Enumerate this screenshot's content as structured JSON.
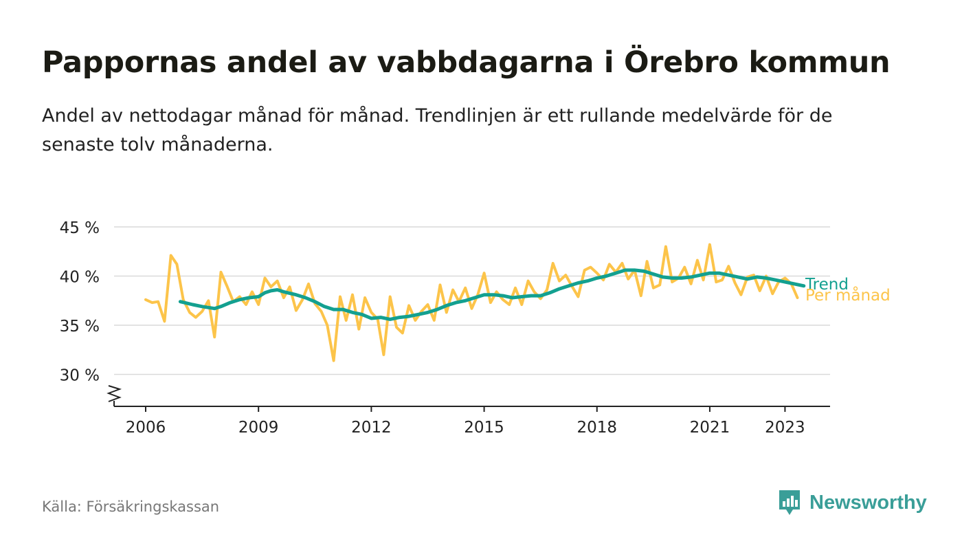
{
  "header": {
    "title": "Pappornas andel av vabbdagarna i Örebro kommun",
    "subtitle": "Andel av nettodagar månad för månad. Trendlinjen är ett rullande medelvärde för de senaste tolv månaderna."
  },
  "footer": {
    "source": "Källa: Försäkringskassan",
    "brand": "Newsworthy"
  },
  "colors": {
    "monthly": "#fcc44a",
    "trend": "#13a090",
    "brand": "#3a9e98",
    "grid": "#d9d9d9",
    "axis": "#222222"
  },
  "chart_data": {
    "type": "line",
    "title": "Pappornas andel av vabbdagarna i Örebro kommun",
    "subtitle": "Andel av nettodagar månad för månad. Trendlinjen är ett rullande medelvärde för de senaste tolv månaderna.",
    "xlabel": "",
    "ylabel": "",
    "x_range": [
      2005.1,
      2024.2
    ],
    "ylim": [
      27,
      45
    ],
    "y_ticks": [
      {
        "value": 30,
        "label": "30 %"
      },
      {
        "value": 35,
        "label": "35 %"
      },
      {
        "value": 40,
        "label": "40 %"
      },
      {
        "value": 45,
        "label": "45 %"
      }
    ],
    "x_ticks": [
      {
        "value": 2006,
        "label": "2006"
      },
      {
        "value": 2009,
        "label": "2009"
      },
      {
        "value": 2012,
        "label": "2012"
      },
      {
        "value": 2015,
        "label": "2015"
      },
      {
        "value": 2018,
        "label": "2018"
      },
      {
        "value": 2021,
        "label": "2021"
      },
      {
        "value": 2023,
        "label": "2023"
      }
    ],
    "grid": true,
    "legend": "direct labels at line ends",
    "series": [
      {
        "name": "Per månad",
        "color": "#fcc44a",
        "points": [
          [
            2006.0,
            37.6
          ],
          [
            2006.17,
            37.3
          ],
          [
            2006.33,
            37.4
          ],
          [
            2006.5,
            35.4
          ],
          [
            2006.67,
            42.1
          ],
          [
            2006.83,
            41.2
          ],
          [
            2007.0,
            37.6
          ],
          [
            2007.17,
            36.3
          ],
          [
            2007.33,
            35.8
          ],
          [
            2007.5,
            36.4
          ],
          [
            2007.67,
            37.5
          ],
          [
            2007.83,
            33.8
          ],
          [
            2008.0,
            40.4
          ],
          [
            2008.17,
            38.9
          ],
          [
            2008.33,
            37.4
          ],
          [
            2008.5,
            37.9
          ],
          [
            2008.67,
            37.1
          ],
          [
            2008.83,
            38.4
          ],
          [
            2009.0,
            37.1
          ],
          [
            2009.17,
            39.8
          ],
          [
            2009.33,
            38.9
          ],
          [
            2009.5,
            39.5
          ],
          [
            2009.67,
            37.8
          ],
          [
            2009.83,
            38.9
          ],
          [
            2010.0,
            36.5
          ],
          [
            2010.17,
            37.6
          ],
          [
            2010.33,
            39.2
          ],
          [
            2010.5,
            37.2
          ],
          [
            2010.67,
            36.4
          ],
          [
            2010.83,
            35.0
          ],
          [
            2011.0,
            31.4
          ],
          [
            2011.17,
            37.9
          ],
          [
            2011.33,
            35.5
          ],
          [
            2011.5,
            38.1
          ],
          [
            2011.67,
            34.6
          ],
          [
            2011.83,
            37.8
          ],
          [
            2012.0,
            36.3
          ],
          [
            2012.17,
            35.6
          ],
          [
            2012.33,
            32.0
          ],
          [
            2012.5,
            37.9
          ],
          [
            2012.67,
            34.8
          ],
          [
            2012.83,
            34.2
          ],
          [
            2013.0,
            37.0
          ],
          [
            2013.17,
            35.5
          ],
          [
            2013.33,
            36.4
          ],
          [
            2013.5,
            37.1
          ],
          [
            2013.67,
            35.5
          ],
          [
            2013.83,
            39.1
          ],
          [
            2014.0,
            36.3
          ],
          [
            2014.17,
            38.6
          ],
          [
            2014.33,
            37.4
          ],
          [
            2014.5,
            38.8
          ],
          [
            2014.67,
            36.7
          ],
          [
            2014.83,
            38.1
          ],
          [
            2015.0,
            40.3
          ],
          [
            2015.17,
            37.3
          ],
          [
            2015.33,
            38.4
          ],
          [
            2015.5,
            37.6
          ],
          [
            2015.67,
            37.1
          ],
          [
            2015.83,
            38.8
          ],
          [
            2016.0,
            37.1
          ],
          [
            2016.17,
            39.5
          ],
          [
            2016.33,
            38.4
          ],
          [
            2016.5,
            37.7
          ],
          [
            2016.67,
            38.6
          ],
          [
            2016.83,
            41.3
          ],
          [
            2017.0,
            39.5
          ],
          [
            2017.17,
            40.1
          ],
          [
            2017.33,
            39.0
          ],
          [
            2017.5,
            37.9
          ],
          [
            2017.67,
            40.6
          ],
          [
            2017.83,
            40.9
          ],
          [
            2018.0,
            40.3
          ],
          [
            2018.17,
            39.6
          ],
          [
            2018.33,
            41.2
          ],
          [
            2018.5,
            40.4
          ],
          [
            2018.67,
            41.3
          ],
          [
            2018.83,
            39.7
          ],
          [
            2019.0,
            40.6
          ],
          [
            2019.17,
            38.0
          ],
          [
            2019.33,
            41.5
          ],
          [
            2019.5,
            38.8
          ],
          [
            2019.67,
            39.1
          ],
          [
            2019.83,
            43.0
          ],
          [
            2020.0,
            39.4
          ],
          [
            2020.17,
            39.8
          ],
          [
            2020.33,
            40.9
          ],
          [
            2020.5,
            39.2
          ],
          [
            2020.67,
            41.6
          ],
          [
            2020.83,
            39.6
          ],
          [
            2021.0,
            43.2
          ],
          [
            2021.17,
            39.4
          ],
          [
            2021.33,
            39.6
          ],
          [
            2021.5,
            41.0
          ],
          [
            2021.67,
            39.3
          ],
          [
            2021.83,
            38.1
          ],
          [
            2022.0,
            39.9
          ],
          [
            2022.17,
            40.1
          ],
          [
            2022.33,
            38.5
          ],
          [
            2022.5,
            40.0
          ],
          [
            2022.67,
            38.2
          ],
          [
            2022.83,
            39.4
          ],
          [
            2023.0,
            39.8
          ],
          [
            2023.17,
            39.2
          ],
          [
            2023.33,
            37.8
          ]
        ]
      },
      {
        "name": "Trend",
        "color": "#13a090",
        "points": [
          [
            2006.92,
            37.4
          ],
          [
            2007.25,
            37.1
          ],
          [
            2007.5,
            36.9
          ],
          [
            2007.83,
            36.7
          ],
          [
            2008.0,
            36.9
          ],
          [
            2008.25,
            37.3
          ],
          [
            2008.5,
            37.6
          ],
          [
            2008.75,
            37.8
          ],
          [
            2009.0,
            37.9
          ],
          [
            2009.17,
            38.3
          ],
          [
            2009.33,
            38.5
          ],
          [
            2009.5,
            38.6
          ],
          [
            2009.67,
            38.4
          ],
          [
            2010.0,
            38.1
          ],
          [
            2010.25,
            37.8
          ],
          [
            2010.5,
            37.4
          ],
          [
            2010.75,
            36.9
          ],
          [
            2011.0,
            36.6
          ],
          [
            2011.25,
            36.6
          ],
          [
            2011.5,
            36.3
          ],
          [
            2011.75,
            36.1
          ],
          [
            2012.0,
            35.7
          ],
          [
            2012.25,
            35.8
          ],
          [
            2012.5,
            35.6
          ],
          [
            2012.75,
            35.8
          ],
          [
            2013.0,
            35.9
          ],
          [
            2013.25,
            36.1
          ],
          [
            2013.5,
            36.3
          ],
          [
            2013.75,
            36.6
          ],
          [
            2014.0,
            37.0
          ],
          [
            2014.25,
            37.3
          ],
          [
            2014.5,
            37.5
          ],
          [
            2014.75,
            37.8
          ],
          [
            2015.0,
            38.1
          ],
          [
            2015.25,
            38.1
          ],
          [
            2015.5,
            38.0
          ],
          [
            2015.75,
            37.8
          ],
          [
            2016.0,
            37.9
          ],
          [
            2016.25,
            38.0
          ],
          [
            2016.5,
            38.0
          ],
          [
            2016.75,
            38.3
          ],
          [
            2017.0,
            38.7
          ],
          [
            2017.25,
            39.0
          ],
          [
            2017.5,
            39.3
          ],
          [
            2017.75,
            39.5
          ],
          [
            2018.0,
            39.8
          ],
          [
            2018.25,
            40.0
          ],
          [
            2018.5,
            40.3
          ],
          [
            2018.75,
            40.6
          ],
          [
            2019.0,
            40.6
          ],
          [
            2019.25,
            40.5
          ],
          [
            2019.5,
            40.2
          ],
          [
            2019.75,
            39.9
          ],
          [
            2020.0,
            39.8
          ],
          [
            2020.25,
            39.8
          ],
          [
            2020.5,
            39.9
          ],
          [
            2020.75,
            40.1
          ],
          [
            2021.0,
            40.3
          ],
          [
            2021.25,
            40.3
          ],
          [
            2021.5,
            40.1
          ],
          [
            2021.75,
            39.9
          ],
          [
            2022.0,
            39.7
          ],
          [
            2022.25,
            39.9
          ],
          [
            2022.5,
            39.8
          ],
          [
            2022.75,
            39.6
          ],
          [
            2023.0,
            39.4
          ],
          [
            2023.25,
            39.2
          ],
          [
            2023.5,
            39.0
          ]
        ]
      }
    ]
  }
}
